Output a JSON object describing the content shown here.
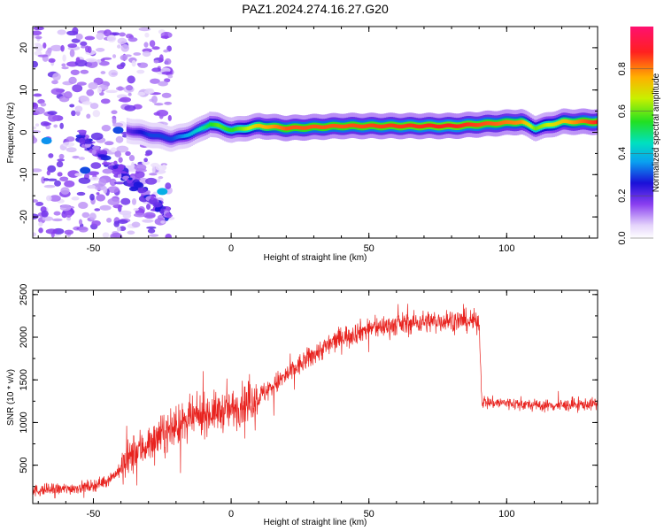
{
  "title": "PAZ1.2024.274.16.27.G20",
  "chart_data": [
    {
      "type": "heatmap",
      "xlabel": "Height of straight line (km)",
      "ylabel": "Frequency (Hz)",
      "xlim": [
        -72,
        133
      ],
      "ylim": [
        -25,
        25
      ],
      "xticks": [
        "-50",
        "0",
        "50",
        "100"
      ],
      "yticks": [
        "-20",
        "-10",
        "0",
        "10",
        "20"
      ],
      "colorbar": {
        "label": "Normalized spectral amplitude",
        "range": [
          0,
          1
        ],
        "ticks": [
          "0.0",
          "0.2",
          "0.4",
          "0.6",
          "0.8"
        ]
      },
      "ridge": {
        "x": [
          -38,
          -30,
          -22,
          -18,
          -12,
          -8,
          -5,
          0,
          10,
          20,
          40,
          80,
          105,
          110,
          120,
          133
        ],
        "freq": [
          0.5,
          -0.5,
          -1.5,
          -1.0,
          0.5,
          2.0,
          1.5,
          0.5,
          1.5,
          1.0,
          1.5,
          1.5,
          2.5,
          1.0,
          2.5,
          2.5
        ],
        "amplitude": [
          0.2,
          0.3,
          0.3,
          0.35,
          0.45,
          0.55,
          0.6,
          0.55,
          0.75,
          0.85,
          0.85,
          0.9,
          0.8,
          0.6,
          0.75,
          0.9
        ]
      }
    },
    {
      "type": "line",
      "xlabel": "Height of straight line (km)",
      "ylabel": "SNR (10 * v/v)",
      "xlim": [
        -72,
        133
      ],
      "ylim": [
        50,
        2550
      ],
      "xticks": [
        "-50",
        "0",
        "50",
        "100"
      ],
      "yticks": [
        "500",
        "1000",
        "1500",
        "2000",
        "2500"
      ],
      "color": "#e8231f",
      "series": [
        {
          "x": [
            -72,
            -60,
            -50,
            -45,
            -40,
            -35,
            -30,
            -25,
            -20,
            -10,
            0,
            10,
            20,
            30,
            40,
            50,
            60,
            70,
            80,
            90,
            91,
            95,
            100,
            110,
            120,
            133
          ],
          "values": [
            200,
            220,
            260,
            320,
            450,
            650,
            750,
            850,
            950,
            1100,
            1150,
            1300,
            1550,
            1800,
            2000,
            2100,
            2150,
            2180,
            2200,
            2180,
            1250,
            1230,
            1230,
            1200,
            1200,
            1220
          ]
        }
      ]
    }
  ]
}
